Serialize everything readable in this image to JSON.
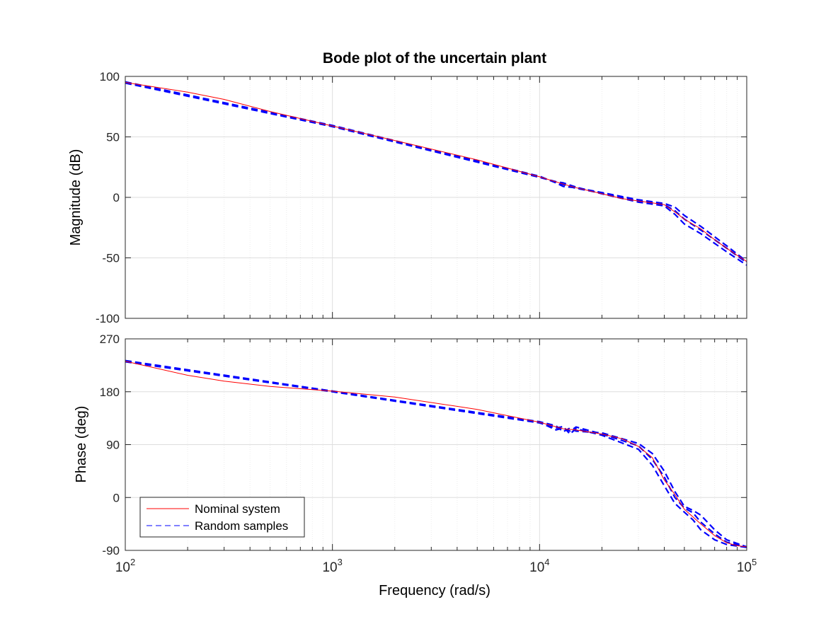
{
  "chart_data": {
    "type": "line",
    "title": "Bode plot of the uncertain plant",
    "xlabel": "Frequency  (rad/s)",
    "x_scale": "log",
    "xlim": [
      100,
      100000
    ],
    "x_ticks": [
      {
        "value": 100,
        "base": "10",
        "exp": "2"
      },
      {
        "value": 1000,
        "base": "10",
        "exp": "3"
      },
      {
        "value": 10000,
        "base": "10",
        "exp": "4"
      },
      {
        "value": 100000,
        "base": "10",
        "exp": "5"
      }
    ],
    "grid": true,
    "legend": {
      "placement": "bottom-left",
      "entries": [
        {
          "label": "Nominal system",
          "color": "#ff0000",
          "style": "solid"
        },
        {
          "label": "Random samples",
          "color": "#0000ff",
          "style": "dashed"
        }
      ]
    },
    "magnitude": {
      "ylabel": "Magnitude (dB)",
      "ylim": [
        -100,
        100
      ],
      "y_ticks": [
        "100",
        "50",
        "0",
        "-50",
        "-100"
      ],
      "nominal": {
        "x": [
          100,
          200,
          300,
          500,
          1000,
          2000,
          5000,
          10000,
          13000,
          15000,
          20000,
          25000,
          30000,
          35000,
          40000,
          45000,
          50000,
          60000,
          70000,
          80000,
          90000,
          100000
        ],
        "y": [
          95,
          87,
          81,
          71,
          59,
          47,
          31,
          17,
          11,
          8,
          3,
          -1,
          -3,
          -4.5,
          -6,
          -12,
          -18,
          -26,
          -35,
          -42,
          -48,
          -53
        ]
      },
      "samples": [
        {
          "x": [
            100,
            1000,
            10000,
            12000,
            13000,
            15000,
            20000,
            30000,
            40000,
            45000,
            50000,
            60000,
            80000,
            100000
          ],
          "y": [
            95.5,
            59.5,
            17.5,
            12,
            9,
            8,
            4,
            -2,
            -5,
            -8,
            -15,
            -24,
            -40,
            -53
          ]
        },
        {
          "x": [
            100,
            1000,
            10000,
            12000,
            13000,
            15000,
            20000,
            30000,
            40000,
            45000,
            50000,
            60000,
            80000,
            100000
          ],
          "y": [
            94.5,
            58.5,
            16.5,
            13,
            12,
            8.5,
            3,
            -4,
            -7,
            -14,
            -22,
            -30,
            -45,
            -56
          ]
        },
        {
          "x": [
            100,
            1000,
            10000,
            12000,
            13000,
            15000,
            20000,
            30000,
            40000,
            45000,
            50000,
            60000,
            80000,
            100000
          ],
          "y": [
            95,
            59,
            17,
            12.5,
            10.5,
            7.5,
            3.5,
            -3,
            -6,
            -11,
            -18,
            -27,
            -42,
            -54
          ]
        }
      ]
    },
    "phase": {
      "ylabel": "Phase (deg)",
      "ylim": [
        -90,
        270
      ],
      "y_ticks": [
        "270",
        "180",
        "90",
        "0",
        "-90"
      ],
      "nominal": {
        "x": [
          100,
          200,
          300,
          500,
          1000,
          2000,
          5000,
          10000,
          13000,
          15000,
          20000,
          25000,
          30000,
          35000,
          40000,
          45000,
          50000,
          60000,
          70000,
          80000,
          90000,
          100000
        ],
        "y": [
          232,
          208,
          198,
          189,
          181,
          171,
          150,
          128,
          117,
          115,
          108,
          100,
          87,
          68,
          30,
          5,
          -20,
          -45,
          -65,
          -77,
          -82,
          -84
        ]
      },
      "samples": [
        {
          "x": [
            100,
            1000,
            10000,
            12000,
            13000,
            14000,
            15000,
            20000,
            30000,
            35000,
            40000,
            45000,
            50000,
            55000,
            60000,
            70000,
            80000,
            100000
          ],
          "y": [
            233,
            181,
            129,
            122,
            112,
            118,
            113,
            110,
            92,
            75,
            45,
            10,
            -15,
            -22,
            -30,
            -55,
            -72,
            -84
          ]
        },
        {
          "x": [
            100,
            1000,
            10000,
            12000,
            13000,
            14000,
            15000,
            20000,
            30000,
            35000,
            40000,
            45000,
            50000,
            55000,
            60000,
            70000,
            80000,
            100000
          ],
          "y": [
            231,
            180,
            127,
            118,
            121,
            108,
            117,
            106,
            82,
            55,
            20,
            -10,
            -25,
            -38,
            -55,
            -72,
            -80,
            -85
          ]
        },
        {
          "x": [
            100,
            1000,
            10000,
            12000,
            13000,
            14000,
            15000,
            20000,
            30000,
            35000,
            40000,
            45000,
            50000,
            55000,
            60000,
            70000,
            80000,
            100000
          ],
          "y": [
            232,
            181,
            128,
            115,
            118,
            113,
            120,
            108,
            88,
            65,
            35,
            0,
            -18,
            -26,
            -42,
            -62,
            -76,
            -84
          ]
        }
      ]
    }
  }
}
